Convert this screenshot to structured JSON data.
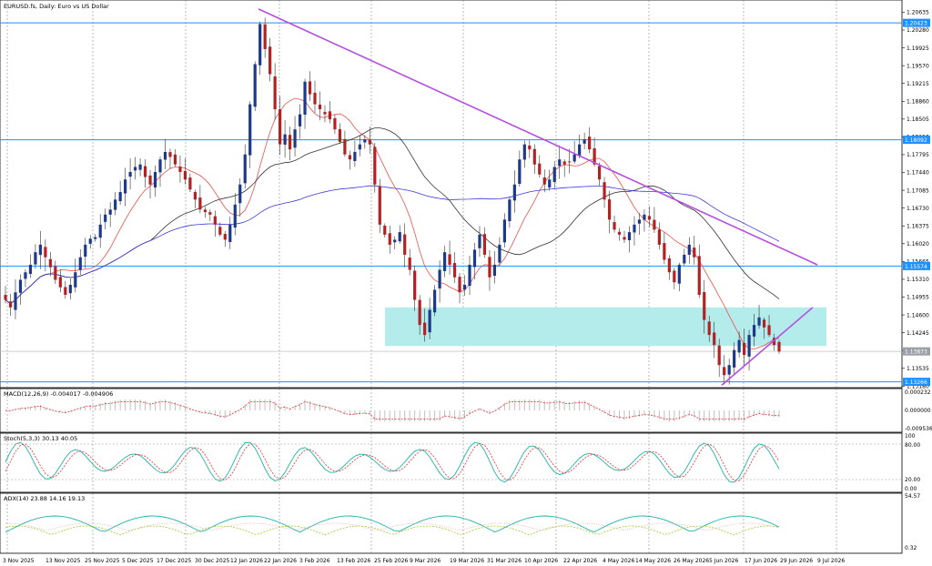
{
  "chart_data": {
    "type": "candlestick",
    "title": "EURUSD.fs, Daily: Euro vs US Dollar",
    "x_tick_labels": [
      "3 Nov 2025",
      "13 Nov 2025",
      "25 Nov 2025",
      "5 Dec 2025",
      "17 Dec 2025",
      "30 Dec 2025",
      "12 Jan 2026",
      "22 Jan 2026",
      "3 Feb 2026",
      "13 Feb 2026",
      "25 Feb 2026",
      "9 Mar 2026",
      "19 Mar 2026",
      "31 Mar 2026",
      "10 Apr 2026",
      "22 Apr 2026",
      "4 May 2026",
      "14 May 2026",
      "26 May 2026",
      "5 Jun 2026",
      "17 Jun 2026",
      "29 Jun 2026",
      "9 Jul 2026"
    ],
    "price_axis_labels": [
      "1.20635",
      "1.20280",
      "1.19925",
      "1.19570",
      "1.19215",
      "1.18860",
      "1.18505",
      "1.18150",
      "1.17795",
      "1.17440",
      "1.17085",
      "1.16730",
      "1.16375",
      "1.16020",
      "1.15665",
      "1.15310",
      "1.14955",
      "1.14600",
      "1.14245",
      "1.13890",
      "1.13535",
      "1.13180"
    ],
    "y_range": [
      1.1315,
      1.2077
    ],
    "horizontal_levels": [
      {
        "label": "1.20423",
        "value": 1.20423,
        "color": "#1e90ff"
      },
      {
        "label": "1.18092",
        "value": 1.18092,
        "color": "#1e90ff"
      },
      {
        "label": "1.15574",
        "value": 1.15574,
        "color": "#1e90ff"
      },
      {
        "label": "1.13266",
        "value": 1.13266,
        "color": "#1e90ff"
      }
    ],
    "current_price": {
      "label": "1.13873",
      "value": 1.13873,
      "color": "#c0c0c0"
    },
    "support_zone": {
      "top": 1.1475,
      "bottom": 1.1398,
      "color": "#b4ecec"
    },
    "trendlines": [
      {
        "name": "descending resistance",
        "color": "#b44ee0",
        "from": {
          "date": "21 Jan 2026",
          "price": 1.207
        },
        "to": {
          "date": "31 Jul 2026",
          "price": 1.156
        }
      },
      {
        "name": "rising support",
        "color": "#b44ee0",
        "from": {
          "date": "22 Jun 2026",
          "price": 1.132
        },
        "to": {
          "date": "10 Jul 2026",
          "price": 1.1475
        }
      }
    ],
    "moving_averages": [
      {
        "color": "#e8534a"
      },
      {
        "color": "#333333"
      },
      {
        "color": "#3a3ad8"
      }
    ],
    "candles_close": [
      1.149,
      1.1475,
      1.1505,
      1.153,
      1.1545,
      1.156,
      1.1585,
      1.16,
      1.1575,
      1.1555,
      1.153,
      1.1515,
      1.15,
      1.152,
      1.1545,
      1.1575,
      1.16,
      1.1612,
      1.1615,
      1.164,
      1.166,
      1.167,
      1.169,
      1.1705,
      1.173,
      1.1745,
      1.1755,
      1.176,
      1.1735,
      1.172,
      1.1745,
      1.177,
      1.1785,
      1.1775,
      1.176,
      1.1745,
      1.173,
      1.171,
      1.169,
      1.167,
      1.1665,
      1.166,
      1.164,
      1.162,
      1.161,
      1.164,
      1.168,
      1.172,
      1.178,
      1.188,
      1.196,
      1.204,
      1.199,
      1.194,
      1.187,
      1.18,
      1.182,
      1.179,
      1.183,
      1.186,
      1.1925,
      1.19,
      1.188,
      1.187,
      1.186,
      1.185,
      1.183,
      1.1805,
      1.178,
      1.177,
      1.1785,
      1.18,
      1.181,
      1.18,
      1.172,
      1.164,
      1.162,
      1.16,
      1.161,
      1.1625,
      1.158,
      1.155,
      1.149,
      1.144,
      1.142,
      1.147,
      1.151,
      1.155,
      1.1585,
      1.156,
      1.1535,
      1.1505,
      1.152,
      1.156,
      1.159,
      1.162,
      1.158,
      1.1535,
      1.156,
      1.16,
      1.165,
      1.169,
      1.172,
      1.177,
      1.18,
      1.179,
      1.176,
      1.174,
      1.172,
      1.173,
      1.1755,
      1.177,
      1.176,
      1.1765,
      1.178,
      1.18,
      1.181,
      1.179,
      1.176,
      1.173,
      1.169,
      1.165,
      1.163,
      1.162,
      1.161,
      1.1625,
      1.164,
      1.165,
      1.166,
      1.165,
      1.163,
      1.16,
      1.157,
      1.1545,
      1.1525,
      1.156,
      1.158,
      1.16,
      1.1575,
      1.15,
      1.145,
      1.142,
      1.14,
      1.136,
      1.134,
      1.136,
      1.139,
      1.141,
      1.138,
      1.142,
      1.144,
      1.1455,
      1.1435,
      1.142,
      1.14,
      1.1387
    ]
  }
}
